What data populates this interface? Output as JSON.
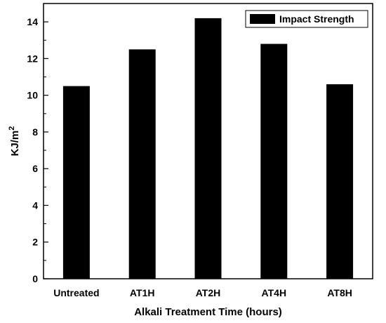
{
  "chart_data": {
    "type": "bar",
    "categories": [
      "Untreated",
      "AT1H",
      "AT2H",
      "AT4H",
      "AT8H"
    ],
    "series": [
      {
        "name": "Impact Strength",
        "values": [
          10.5,
          12.5,
          14.2,
          12.8,
          10.6
        ],
        "color": "#000000"
      }
    ],
    "xlabel": "Alkali Treatment Time (hours)",
    "ylabel_main": "KJ/m",
    "ylabel_sup": "2",
    "ylim": [
      0,
      15
    ],
    "yticks": [
      0,
      2,
      4,
      6,
      8,
      10,
      12,
      14
    ],
    "ytick_labels": [
      "0",
      "2",
      "4",
      "6",
      "8",
      "10",
      "12",
      "14"
    ],
    "legend_position": "top-right",
    "grid": false
  }
}
